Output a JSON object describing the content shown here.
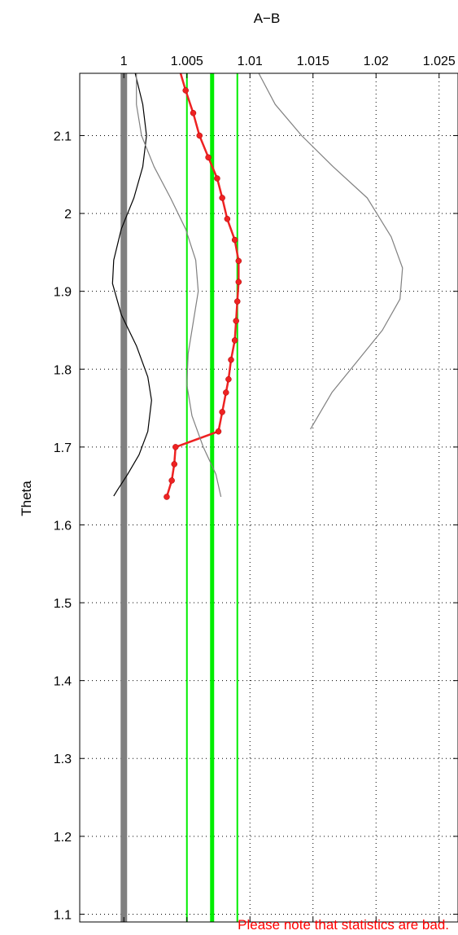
{
  "chart_data": {
    "type": "line",
    "title": "A−B",
    "xlabel": "",
    "ylabel": "Theta",
    "x_axis_position": "top",
    "xlim": [
      0.9965,
      1.0265
    ],
    "ylim": [
      1.09,
      2.18
    ],
    "x_ticks": [
      1,
      1.005,
      1.01,
      1.015,
      1.02,
      1.025
    ],
    "x_tick_labels": [
      "1",
      "1.005",
      "1.01",
      "1.015",
      "1.02",
      "1.025"
    ],
    "y_ticks": [
      1.1,
      1.2,
      1.3,
      1.4,
      1.5,
      1.6,
      1.7,
      1.8,
      1.9,
      2,
      2.1
    ],
    "y_tick_labels": [
      "1.1",
      "1.2",
      "1.3",
      "1.4",
      "1.5",
      "1.6",
      "1.7",
      "1.8",
      "1.9",
      "2",
      "2.1"
    ],
    "grid": true,
    "colors": {
      "main": "#ee2222",
      "reference": "#808080",
      "bands": "#00ee00",
      "black_curve": "#000000",
      "gray_curve": "#808080",
      "note": "#ff0000"
    },
    "reference_line": {
      "x": 1.0
    },
    "vertical_lines": [
      {
        "x": 1.005,
        "width": "thin"
      },
      {
        "x": 1.007,
        "width": "thick"
      },
      {
        "x": 1.009,
        "width": "thin"
      }
    ],
    "series": [
      {
        "style": "red-dots",
        "points": [
          [
            1.0045,
            2.18
          ],
          [
            1.0049,
            2.158
          ],
          [
            1.0055,
            2.129
          ],
          [
            1.006,
            2.1
          ],
          [
            1.0067,
            2.072
          ],
          [
            1.0074,
            2.045
          ],
          [
            1.0078,
            2.02
          ],
          [
            1.0082,
            1.993
          ],
          [
            1.0088,
            1.966
          ],
          [
            1.0091,
            1.939
          ],
          [
            1.0091,
            1.912
          ],
          [
            1.009,
            1.887
          ],
          [
            1.0089,
            1.862
          ],
          [
            1.0088,
            1.837
          ],
          [
            1.0085,
            1.812
          ],
          [
            1.0083,
            1.787
          ],
          [
            1.0081,
            1.77
          ],
          [
            1.0078,
            1.745
          ],
          [
            1.0075,
            1.72
          ],
          [
            1.0041,
            1.7
          ],
          [
            1.004,
            1.678
          ],
          [
            1.0038,
            1.657
          ],
          [
            1.0034,
            1.636
          ]
        ]
      },
      {
        "style": "black-thin",
        "points": [
          [
            1.0009,
            2.18
          ],
          [
            1.0015,
            2.14
          ],
          [
            1.0018,
            2.1
          ],
          [
            1.0015,
            2.06
          ],
          [
            1.0008,
            2.02
          ],
          [
            0.9998,
            1.98
          ],
          [
            0.9992,
            1.94
          ],
          [
            0.9991,
            1.91
          ],
          [
            0.9998,
            1.87
          ],
          [
            1.001,
            1.83
          ],
          [
            1.0019,
            1.79
          ],
          [
            1.0022,
            1.76
          ],
          [
            1.0019,
            1.72
          ],
          [
            1.0012,
            1.69
          ],
          [
            1.0003,
            1.665
          ],
          [
            0.9995,
            1.645
          ],
          [
            0.9992,
            1.637
          ]
        ]
      },
      {
        "style": "gray-thin",
        "points": [
          [
            1.001,
            2.18
          ],
          [
            1.001,
            2.14
          ],
          [
            1.0014,
            2.1
          ],
          [
            1.0024,
            2.06
          ],
          [
            1.0037,
            2.02
          ],
          [
            1.0049,
            1.98
          ],
          [
            1.0057,
            1.94
          ],
          [
            1.0059,
            1.9
          ],
          [
            1.0055,
            1.86
          ],
          [
            1.0051,
            1.82
          ],
          [
            1.005,
            1.78
          ],
          [
            1.0054,
            1.74
          ],
          [
            1.0063,
            1.7
          ],
          [
            1.0073,
            1.665
          ],
          [
            1.0077,
            1.636
          ]
        ]
      },
      {
        "style": "gray-thin",
        "points": [
          [
            1.0107,
            2.18
          ],
          [
            1.012,
            2.14
          ],
          [
            1.0141,
            2.1
          ],
          [
            1.0166,
            2.06
          ],
          [
            1.0193,
            2.02
          ],
          [
            1.0212,
            1.97
          ],
          [
            1.0221,
            1.93
          ],
          [
            1.0219,
            1.89
          ],
          [
            1.0205,
            1.85
          ],
          [
            1.0185,
            1.81
          ],
          [
            1.0165,
            1.77
          ],
          [
            1.0148,
            1.723
          ]
        ]
      }
    ],
    "note": "Please note that statistics are bad."
  }
}
